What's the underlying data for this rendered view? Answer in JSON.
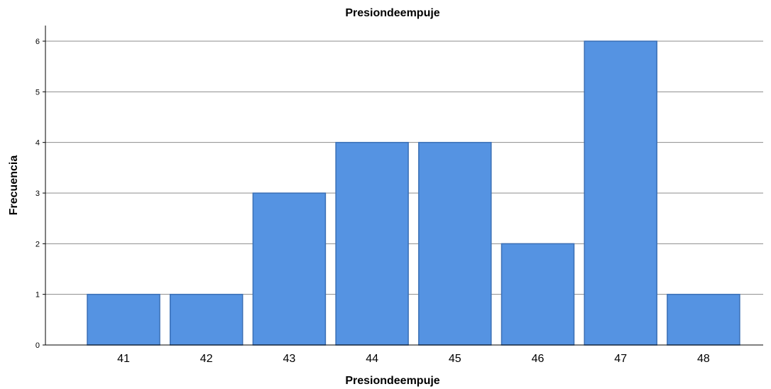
{
  "chart_data": {
    "type": "bar",
    "title": "Presiondeempuje",
    "xlabel": "Presiondeempuje",
    "ylabel": "Frecuencia",
    "categories": [
      "41",
      "42",
      "43",
      "44",
      "45",
      "46",
      "47",
      "48"
    ],
    "values": [
      1,
      1,
      3,
      4,
      4,
      2,
      6,
      1
    ],
    "yticks": [
      "0",
      "1",
      "2",
      "3",
      "4",
      "5",
      "6"
    ],
    "ylim": [
      0,
      6
    ],
    "grid": true,
    "bar_color": "#5593e2",
    "bar_edge_color": "#3a6fb5"
  }
}
